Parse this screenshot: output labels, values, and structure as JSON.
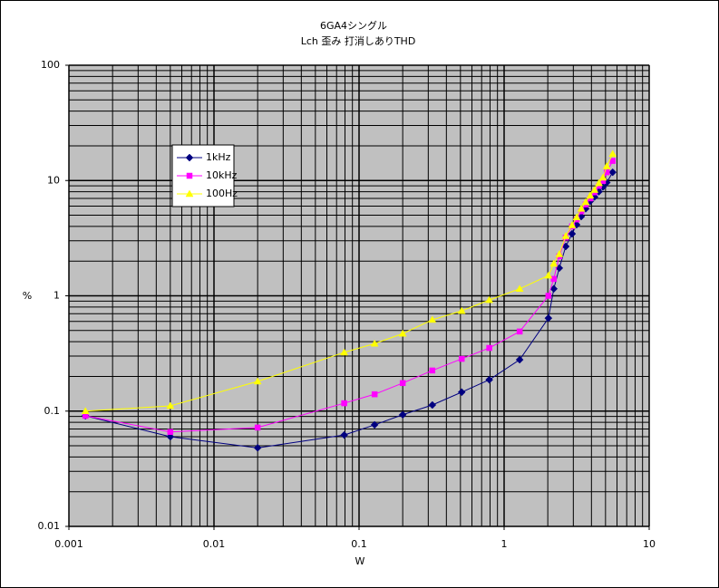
{
  "chart_data": {
    "type": "line",
    "title": "6GA4シングル",
    "subtitle": "Lch 歪み 打消しありTHD",
    "x_label": "W",
    "y_label": "%",
    "x": [
      0.0013,
      0.005,
      0.02,
      0.079,
      0.128,
      0.2,
      0.32,
      0.51,
      0.79,
      1.28,
      2.02,
      2.2,
      2.4,
      2.66,
      2.94,
      3.16,
      3.4,
      3.65,
      3.92,
      4.2,
      4.5,
      4.8,
      5.1,
      5.6
    ],
    "series": [
      {
        "name": "1kHz",
        "color": "#000080",
        "marker": "diamond",
        "values": [
          0.091,
          0.06,
          0.048,
          0.062,
          0.076,
          0.093,
          0.113,
          0.146,
          0.187,
          0.279,
          0.64,
          1.15,
          1.74,
          2.68,
          3.45,
          4.14,
          4.87,
          5.7,
          6.6,
          7.2,
          8.0,
          8.8,
          9.6,
          11.8
        ]
      },
      {
        "name": "10kHz",
        "color": "#ff00ff",
        "marker": "square",
        "values": [
          0.091,
          0.066,
          0.072,
          0.117,
          0.14,
          0.175,
          0.225,
          0.284,
          0.353,
          0.49,
          1.0,
          1.4,
          2.2,
          3.2,
          4.0,
          4.6,
          5.4,
          6.2,
          7.0,
          7.9,
          9.0,
          9.9,
          11.8,
          14.8
        ]
      },
      {
        "name": "100Hz",
        "color": "#ffff00",
        "marker": "triangle",
        "values": [
          0.1,
          0.111,
          0.181,
          0.323,
          0.385,
          0.47,
          0.62,
          0.74,
          0.92,
          1.15,
          1.5,
          1.9,
          2.3,
          3.3,
          4.1,
          4.8,
          5.7,
          6.5,
          7.4,
          8.3,
          9.5,
          10.6,
          13.3,
          17.0
        ]
      }
    ],
    "xlim": [
      0.001,
      10
    ],
    "ylim": [
      0.01,
      100
    ],
    "xticks": [
      0.001,
      0.01,
      0.1,
      1,
      10
    ],
    "yticks": [
      0.01,
      0.1,
      1,
      10,
      100
    ],
    "xscale": "log",
    "yscale": "log",
    "grid": true,
    "minor_grid": true,
    "plot_background": "#c0c0c0",
    "legend": "upper left"
  }
}
